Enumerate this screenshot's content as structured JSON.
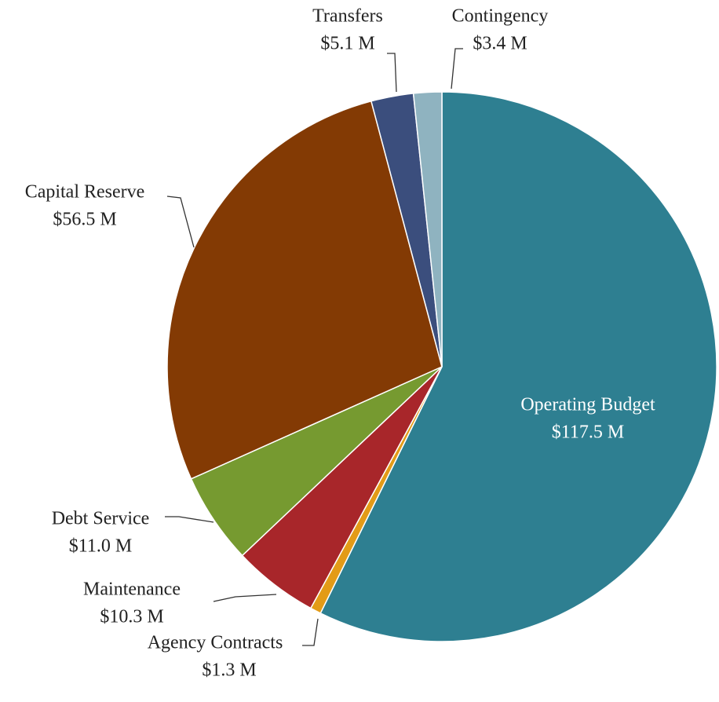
{
  "chart_data": {
    "type": "pie",
    "categories": [
      "Operating Budget",
      "Agency Contracts",
      "Maintenance",
      "Debt Service",
      "Capital Reserve",
      "Transfers",
      "Contingency"
    ],
    "values": [
      117.5,
      1.3,
      10.3,
      11.0,
      56.5,
      5.1,
      3.4
    ],
    "value_labels": [
      "$117.5 M",
      "$1.3 M",
      "$10.3 M",
      "$11.0 M",
      "$56.5 M",
      "$5.1 M",
      "$3.4 M"
    ],
    "colors": [
      "#2e7f91",
      "#e39b17",
      "#a8262a",
      "#769a30",
      "#833a04",
      "#3b4e7d",
      "#8fb3c0"
    ]
  }
}
